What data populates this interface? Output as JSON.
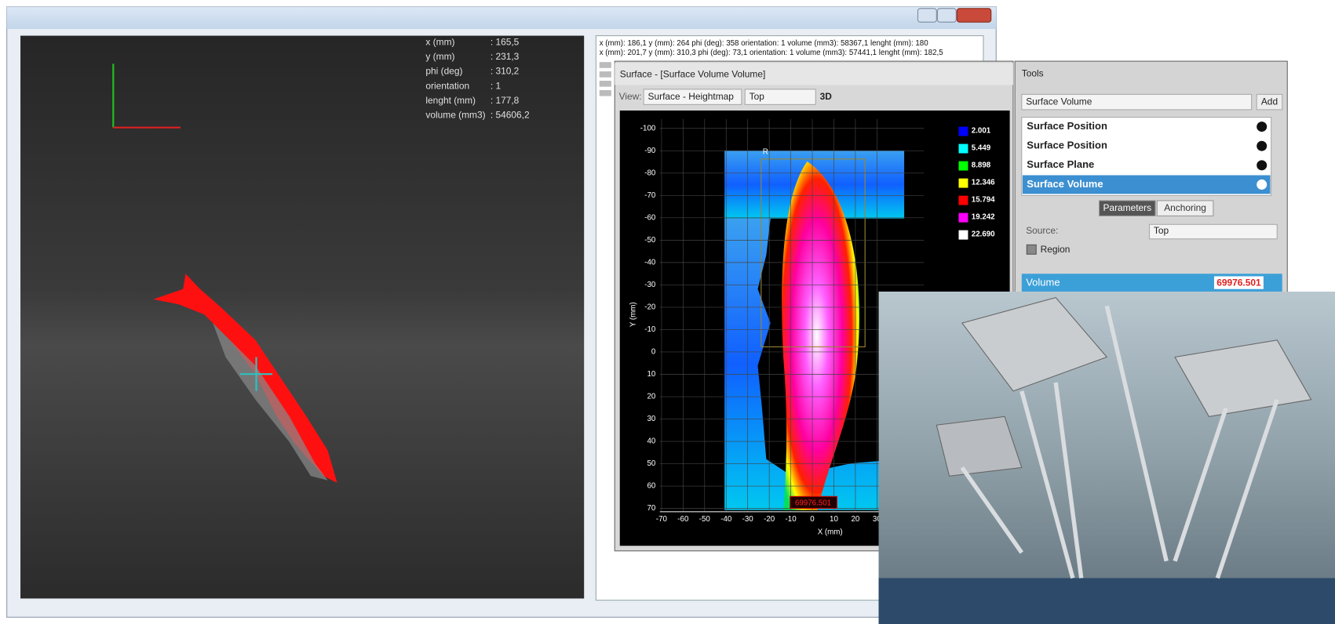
{
  "main_window": {
    "measurements": [
      {
        "label": "x (mm)",
        "value": ": 165,5"
      },
      {
        "label": "y (mm)",
        "value": ": 231,3"
      },
      {
        "label": "phi (deg)",
        "value": ": 310,2"
      },
      {
        "label": "orientation",
        "value": ": 1"
      },
      {
        "label": "lenght (mm)",
        "value": ": 177,8"
      },
      {
        "label": "volume (mm3)",
        "value": ": 54606,2"
      }
    ],
    "log": [
      "x (mm): 186,1 y (mm): 264 phi (deg): 358 orientation: 1 volume (mm3): 58367,1 lenght (mm): 180",
      "x (mm): 201,7 y (mm): 310,3 phi (deg): 73,1 orientation: 1 volume (mm3): 57441,1 lenght (mm): 182,5"
    ]
  },
  "surface_window": {
    "title": "Surface - [Surface Volume Volume]",
    "view_label": "View:",
    "view": "Surface - Heightmap",
    "orientation": "Top",
    "mode": "3D",
    "plot": {
      "y_label": "Y (mm)",
      "x_label": "X (mm)",
      "yticks": [
        "-100",
        "-90",
        "-80",
        "-70",
        "-60",
        "-50",
        "-40",
        "-30",
        "-20",
        "-10",
        "0",
        "10",
        "20",
        "30",
        "40",
        "50",
        "60",
        "70"
      ],
      "xticks": [
        "-70",
        "-60",
        "-50",
        "-40",
        "-30",
        "-20",
        "-10",
        "0",
        "10",
        "20",
        "30"
      ],
      "legend": [
        {
          "label": "2.001",
          "color": "#0000ff"
        },
        {
          "label": "5.449",
          "color": "#00ffff"
        },
        {
          "label": "8.898",
          "color": "#00ff00"
        },
        {
          "label": "12.346",
          "color": "#ffff00"
        },
        {
          "label": "15.794",
          "color": "#ff0000"
        },
        {
          "label": "19.242",
          "color": "#ff00ff"
        },
        {
          "label": "22.690",
          "color": "#ffffff"
        }
      ],
      "region_label": "R",
      "volume_label": "69976.501"
    }
  },
  "tools": {
    "title": "Tools",
    "selected_tool": "Surface Volume",
    "add_button": "Add",
    "items": [
      "Surface Position",
      "Surface Position",
      "Surface Plane",
      "Surface Volume"
    ],
    "tabs": [
      "Parameters",
      "Anchoring"
    ],
    "source_label": "Source:",
    "source": "Top",
    "region": "Region",
    "result_label": "Volume",
    "result_value": "69976.501"
  }
}
